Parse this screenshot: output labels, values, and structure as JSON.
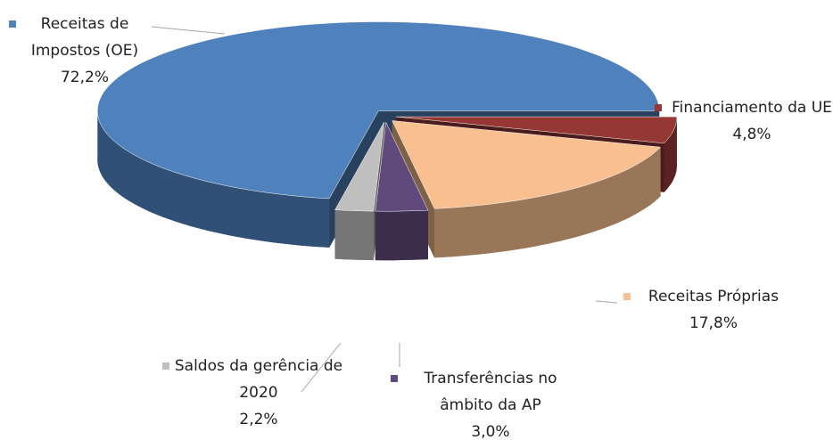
{
  "chart_data": {
    "type": "pie",
    "categories": [
      "Financiamento da UE",
      "Receitas Próprias",
      "Transferências no âmbito da AP",
      "Saldos da gerência de 2020",
      "Receitas de Impostos (OE)"
    ],
    "values": [
      4.8,
      17.8,
      3.0,
      2.2,
      72.2
    ],
    "value_labels": [
      "4,8%",
      "17,8%",
      "3,0%",
      "2,2%",
      "72,2%"
    ],
    "colors": [
      "#953735",
      "#f9bf8f",
      "#604a7b",
      "#bfbfbf",
      "#4f81bd"
    ]
  }
}
